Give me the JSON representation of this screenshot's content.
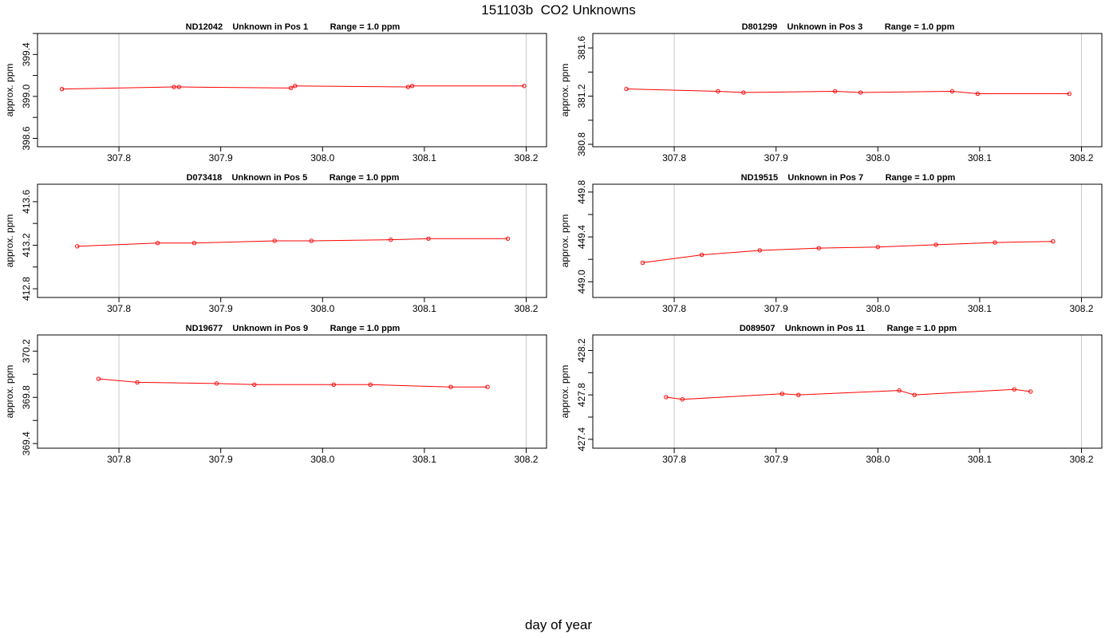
{
  "page": {
    "title": "151103b  CO2 Unknowns",
    "xlabel": "day of year"
  },
  "colors": {
    "series": "#ff0000",
    "gridline": "#c8c8c8",
    "frame": "#000000"
  },
  "chart_data": [
    {
      "type": "line",
      "title": "ND12042    Unknown in Pos 1         Range = 1.0 ppm",
      "ylabel": "approx. ppm",
      "xlim": [
        307.72,
        308.22
      ],
      "ylim": [
        398.52,
        399.6
      ],
      "xticks": [
        307.8,
        307.9,
        308.0,
        308.1,
        308.2
      ],
      "xtick_labels": [
        "307.8",
        "307.9",
        "308.0",
        "308.1",
        "308.2"
      ],
      "yticks": [
        398.6,
        399.0,
        399.4
      ],
      "ytick_labels": [
        "398.6",
        "399.0",
        "399.4"
      ],
      "grid_x": [
        307.8,
        308.2
      ],
      "x": [
        307.744,
        307.854,
        307.859,
        307.969,
        307.973,
        308.084,
        308.088,
        308.198
      ],
      "y": [
        399.07,
        399.09,
        399.09,
        399.08,
        399.1,
        399.09,
        399.1,
        399.1
      ]
    },
    {
      "type": "line",
      "title": "D801299    Unknown in Pos 3         Range = 1.0 ppm",
      "ylabel": "approx. ppm",
      "xlim": [
        307.72,
        308.22
      ],
      "ylim": [
        380.78,
        381.72
      ],
      "xticks": [
        307.8,
        307.9,
        308.0,
        308.1,
        308.2
      ],
      "xtick_labels": [
        "307.8",
        "307.9",
        "308.0",
        "308.1",
        "308.2"
      ],
      "yticks": [
        380.8,
        381.2,
        381.6
      ],
      "ytick_labels": [
        "380.8",
        "381.2",
        "381.6"
      ],
      "grid_x": [
        307.8,
        308.2
      ],
      "x": [
        307.753,
        307.843,
        307.868,
        307.958,
        307.983,
        308.073,
        308.098,
        308.188
      ],
      "y": [
        381.26,
        381.24,
        381.23,
        381.24,
        381.23,
        381.24,
        381.22,
        381.22
      ]
    },
    {
      "type": "line",
      "title": "D073418    Unknown in Pos 5         Range = 1.0 ppm",
      "ylabel": "approx. ppm",
      "xlim": [
        307.72,
        308.22
      ],
      "ylim": [
        412.72,
        413.76
      ],
      "xticks": [
        307.8,
        307.9,
        308.0,
        308.1,
        308.2
      ],
      "xtick_labels": [
        "307.8",
        "307.9",
        "308.0",
        "308.1",
        "308.2"
      ],
      "yticks": [
        412.8,
        413.2,
        413.6
      ],
      "ytick_labels": [
        "412.8",
        "413.2",
        "413.6"
      ],
      "grid_x": [
        307.8,
        308.2
      ],
      "x": [
        307.759,
        307.838,
        307.874,
        307.953,
        307.989,
        308.067,
        308.104,
        308.182
      ],
      "y": [
        413.19,
        413.22,
        413.22,
        413.24,
        413.24,
        413.25,
        413.26,
        413.26
      ]
    },
    {
      "type": "line",
      "title": "ND19515    Unknown in Pos 7         Range = 1.0 ppm",
      "ylabel": "approx. ppm",
      "xlim": [
        307.72,
        308.22
      ],
      "ylim": [
        448.86,
        449.87
      ],
      "xticks": [
        307.8,
        307.9,
        308.0,
        308.1,
        308.2
      ],
      "xtick_labels": [
        "307.8",
        "307.9",
        "308.0",
        "308.1",
        "308.2"
      ],
      "yticks": [
        449.0,
        449.4,
        449.8
      ],
      "ytick_labels": [
        "449.0",
        "449.4",
        "449.8"
      ],
      "grid_x": [
        307.8,
        308.2
      ],
      "x": [
        307.769,
        307.827,
        307.884,
        307.942,
        308.0,
        308.057,
        308.115,
        308.172
      ],
      "y": [
        449.17,
        449.24,
        449.28,
        449.3,
        449.31,
        449.33,
        449.35,
        449.36
      ]
    },
    {
      "type": "line",
      "title": "ND19677    Unknown in Pos 9         Range = 1.0 ppm",
      "ylabel": "approx. ppm",
      "xlim": [
        307.72,
        308.22
      ],
      "ylim": [
        369.36,
        370.34
      ],
      "xticks": [
        307.8,
        307.9,
        308.0,
        308.1,
        308.2
      ],
      "xtick_labels": [
        "307.8",
        "307.9",
        "308.0",
        "308.1",
        "308.2"
      ],
      "yticks": [
        369.4,
        369.8,
        370.2
      ],
      "ytick_labels": [
        "369.4",
        "369.8",
        "370.2"
      ],
      "grid_x": [
        307.8,
        308.2
      ],
      "x": [
        307.78,
        307.818,
        307.896,
        307.933,
        308.011,
        308.047,
        308.126,
        308.162
      ],
      "y": [
        369.96,
        369.93,
        369.92,
        369.91,
        369.91,
        369.91,
        369.89,
        369.89
      ]
    },
    {
      "type": "line",
      "title": "D089507    Unknown in Pos 11         Range = 1.0 ppm",
      "ylabel": "approx. ppm",
      "xlim": [
        307.72,
        308.22
      ],
      "ylim": [
        427.32,
        428.34
      ],
      "xticks": [
        307.8,
        307.9,
        308.0,
        308.1,
        308.2
      ],
      "xtick_labels": [
        "307.8",
        "307.9",
        "308.0",
        "308.1",
        "308.2"
      ],
      "yticks": [
        427.4,
        427.8,
        428.2
      ],
      "ytick_labels": [
        "427.4",
        "427.8",
        "428.2"
      ],
      "grid_x": [
        307.8,
        308.2
      ],
      "x": [
        307.792,
        307.808,
        307.906,
        307.922,
        308.021,
        308.036,
        308.134,
        308.15
      ],
      "y": [
        427.78,
        427.76,
        427.81,
        427.8,
        427.84,
        427.8,
        427.85,
        427.83
      ]
    }
  ]
}
